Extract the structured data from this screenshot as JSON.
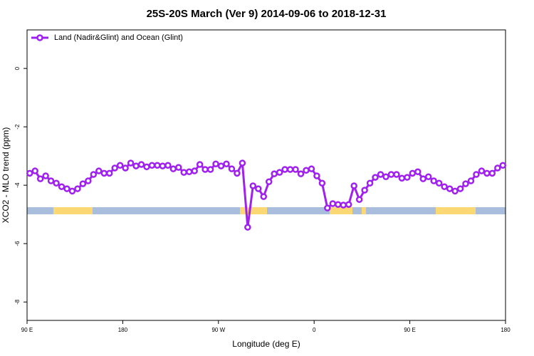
{
  "chart_data": {
    "type": "line",
    "title": "25S-20S March (Ver 9)   2014-09-06 to 2018-12-31",
    "x_label": "Longitude (deg E)",
    "y_label": "XCO2 - MLO trend (ppm)",
    "x": [
      92.5,
      97.5,
      102.5,
      107.5,
      112.5,
      117.5,
      122.5,
      127.5,
      132.5,
      137.5,
      142.5,
      147.5,
      152.5,
      157.5,
      162.5,
      167.5,
      172.5,
      177.5,
      182.5,
      187.5,
      192.5,
      197.5,
      202.5,
      207.5,
      212.5,
      217.5,
      222.5,
      227.5,
      232.5,
      237.5,
      242.5,
      247.5,
      252.5,
      257.5,
      262.5,
      267.5,
      272.5,
      277.5,
      282.5,
      287.5,
      292.5,
      297.5,
      302.5,
      307.5,
      312.5,
      317.5,
      322.5,
      327.5,
      332.5,
      337.5,
      342.5,
      347.5,
      352.5,
      357.5,
      362.5,
      367.5,
      372.5,
      377.5,
      382.5,
      387.5,
      392.5,
      397.5,
      402.5,
      407.5,
      412.5,
      417.5,
      422.5,
      427.5,
      432.5,
      437.5,
      442.5,
      447.5,
      452.5,
      457.5,
      462.5,
      467.5,
      472.5,
      477.5,
      482.5,
      487.5,
      492.5,
      497.5,
      502.5,
      507.5,
      512.5,
      517.5,
      522.5,
      527.5,
      532.5,
      537.5
    ],
    "series": [
      {
        "name": "Land (Nadir&Glint) and Ocean (Glint)",
        "color": "#a020f0",
        "values": [
          -3.59,
          -3.51,
          -3.78,
          -3.68,
          -3.85,
          -3.93,
          -4.05,
          -4.12,
          -4.2,
          -4.12,
          -3.95,
          -3.85,
          -3.63,
          -3.51,
          -3.59,
          -3.59,
          -3.41,
          -3.32,
          -3.41,
          -3.24,
          -3.34,
          -3.29,
          -3.37,
          -3.32,
          -3.32,
          -3.34,
          -3.32,
          -3.44,
          -3.39,
          -3.56,
          -3.54,
          -3.51,
          -3.29,
          -3.46,
          -3.46,
          -3.27,
          -3.34,
          -3.27,
          -3.44,
          -3.59,
          -3.24,
          -5.44,
          -4.02,
          -4.12,
          -4.39,
          -3.88,
          -3.61,
          -3.56,
          -3.46,
          -3.46,
          -3.46,
          -3.61,
          -3.49,
          -3.44,
          -3.68,
          -3.93,
          -4.78,
          -4.63,
          -4.66,
          -4.68,
          -4.66,
          -4.02,
          -4.49,
          -4.17,
          -3.93,
          -3.73,
          -3.63,
          -3.71,
          -3.63,
          -3.63,
          -3.76,
          -3.73,
          -3.59,
          -3.54,
          -3.78,
          -3.71,
          -3.85,
          -3.93,
          -4.05,
          -4.12,
          -4.2,
          -4.12,
          -3.95,
          -3.85,
          -3.63,
          -3.51,
          -3.59,
          -3.59,
          -3.41,
          -3.32
        ]
      }
    ],
    "xlim": [
      90,
      540
    ],
    "xticks": [
      {
        "value": 90,
        "label": "90 E"
      },
      {
        "value": 180,
        "label": "180"
      },
      {
        "value": 270,
        "label": "90 W"
      },
      {
        "value": 360,
        "label": "0"
      },
      {
        "value": 450,
        "label": "90 E"
      },
      {
        "value": 540,
        "label": "180"
      }
    ],
    "ylim": [
      -8.63,
      1.32
    ],
    "yticks": [
      0,
      -2,
      -4,
      -6,
      -8
    ],
    "legend": "top-left"
  }
}
